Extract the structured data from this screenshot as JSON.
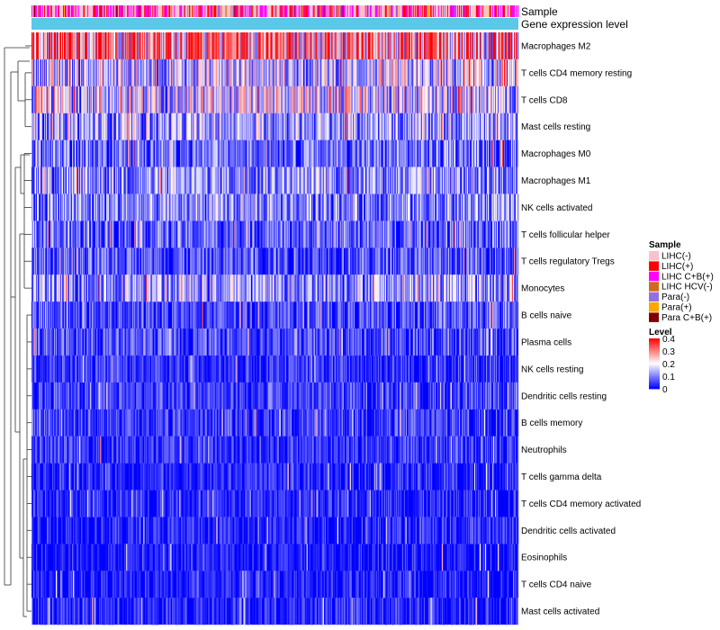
{
  "chart_data": {
    "type": "heatmap",
    "title": "",
    "annotation_tracks": [
      "Sample",
      "Gene expression level"
    ],
    "rows": [
      "Macrophages M2",
      "T cells CD4 memory resting",
      "T cells CD8",
      "Mast cells resting",
      "Macrophages M0",
      "Macrophages M1",
      "NK cells activated",
      "T cells follicular helper",
      "T cells regulatory  Tregs",
      "Monocytes",
      "B cells naive",
      "Plasma cells",
      "NK cells resting",
      "Dendritic cells resting",
      "B cells memory",
      "Neutrophils",
      "T cells gamma delta",
      "T cells CD4 memory activated",
      "Dendritic cells activated",
      "Eosinophils",
      "T cells CD4 naive",
      "Mast cells activated"
    ],
    "row_mean_level": [
      0.3,
      0.15,
      0.17,
      0.12,
      0.08,
      0.11,
      0.1,
      0.07,
      0.06,
      0.12,
      0.05,
      0.05,
      0.03,
      0.04,
      0.04,
      0.03,
      0.02,
      0.02,
      0.02,
      0.01,
      0.01,
      0.02
    ],
    "n_samples": 540,
    "color_scale": {
      "min": 0,
      "max": 0.4,
      "colors": [
        "#0000ff",
        "#ffffff",
        "#ff0000"
      ]
    },
    "gene_expression_color": "#5bc8e8",
    "legends": {
      "sample": {
        "title": "Sample",
        "entries": [
          {
            "label": "LIHC(-)",
            "color": "#ffc0cb"
          },
          {
            "label": "LIHC(+)",
            "color": "#ff0000"
          },
          {
            "label": "LIHC C+B(+)",
            "color": "#ff00ff"
          },
          {
            "label": "LIHC HCV(-)",
            "color": "#d2691e"
          },
          {
            "label": "Para(-)",
            "color": "#9370db"
          },
          {
            "label": "Para(+)",
            "color": "#ffa500"
          },
          {
            "label": "Para C+B(+)",
            "color": "#800000"
          }
        ]
      },
      "level": {
        "title": "Level",
        "ticks": [
          "0.4",
          "0.3",
          "0.2",
          "0.1",
          "0"
        ],
        "tick_values": [
          0.4,
          0.3,
          0.2,
          0.1,
          0
        ]
      }
    }
  }
}
